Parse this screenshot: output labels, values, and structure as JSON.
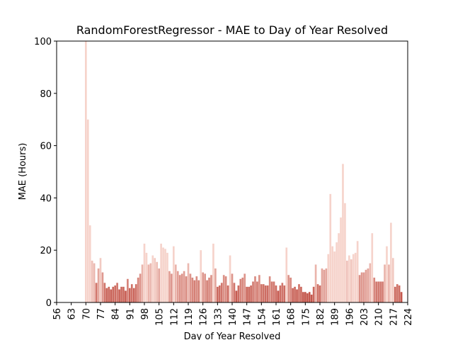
{
  "chart_data": {
    "type": "bar",
    "title": "RandomForestRegressor - MAE to Day of Year Resolved",
    "xlabel": "Day of Year Resolved",
    "ylabel": "MAE (Hours)",
    "x": [
      70,
      71,
      72,
      73,
      74,
      75,
      76,
      77,
      78,
      79,
      80,
      81,
      82,
      83,
      84,
      85,
      86,
      87,
      88,
      89,
      90,
      91,
      92,
      93,
      94,
      95,
      96,
      97,
      98,
      99,
      100,
      101,
      102,
      103,
      104,
      105,
      106,
      107,
      108,
      109,
      110,
      111,
      112,
      113,
      114,
      115,
      116,
      117,
      118,
      119,
      120,
      121,
      122,
      123,
      124,
      125,
      126,
      127,
      128,
      129,
      130,
      131,
      132,
      133,
      134,
      135,
      136,
      137,
      138,
      139,
      140,
      141,
      142,
      143,
      144,
      145,
      146,
      147,
      148,
      149,
      150,
      151,
      152,
      153,
      154,
      155,
      156,
      157,
      158,
      159,
      160,
      161,
      162,
      163,
      164,
      165,
      166,
      167,
      168,
      169,
      170,
      171,
      172,
      173,
      174,
      175,
      176,
      177,
      178,
      179,
      180,
      181,
      182,
      183,
      184,
      185,
      186,
      187,
      188,
      189,
      190,
      191,
      192,
      193,
      194,
      195,
      196,
      197,
      198,
      199,
      200,
      201,
      202,
      203,
      204,
      205,
      206,
      207,
      208,
      209,
      210,
      211,
      212,
      213,
      214,
      215,
      216,
      217,
      218,
      219,
      220,
      221
    ],
    "values": [
      100,
      70,
      29.5,
      16,
      15,
      7.5,
      13,
      17,
      11.5,
      7.5,
      5.5,
      6,
      5,
      6,
      6.5,
      7.5,
      5,
      6,
      6,
      4.5,
      9,
      5.5,
      7,
      5.5,
      7,
      9.5,
      11,
      14.5,
      22.5,
      19,
      14.5,
      15,
      18,
      17,
      15.5,
      13,
      22.5,
      21,
      20.5,
      19,
      12,
      11,
      21.5,
      14.5,
      12,
      10.5,
      11,
      12,
      10,
      15,
      11,
      9.5,
      8.5,
      10,
      8.5,
      20,
      11.5,
      11,
      8.5,
      9.5,
      10.5,
      22.5,
      13,
      6,
      6.5,
      7.5,
      10.5,
      10,
      6.5,
      18,
      11,
      7.5,
      4.5,
      6.5,
      9,
      9.5,
      11,
      6,
      6,
      6.5,
      8,
      10,
      8,
      10.5,
      7,
      7,
      6.5,
      6.5,
      10,
      8,
      8,
      6.5,
      4.5,
      6.5,
      7.5,
      6.5,
      21,
      10.5,
      9.5,
      5.5,
      6,
      5,
      7,
      6,
      4,
      4,
      3.5,
      4,
      3,
      6,
      14.5,
      7,
      6.5,
      13,
      12.5,
      13,
      18.5,
      41.5,
      21.5,
      19.5,
      23,
      26.5,
      32.5,
      53,
      38,
      16,
      18,
      16.5,
      18.5,
      19,
      23.5,
      10.5,
      11.5,
      11.5,
      12.5,
      13,
      15,
      26.5,
      9.5,
      8,
      8,
      8,
      8,
      14.5,
      21.5,
      14.5,
      30.5,
      17,
      6,
      7,
      6.5,
      4
    ],
    "color_low": "#c4574c",
    "color_high": "#f6d3cb",
    "xlim": [
      56,
      224
    ],
    "xticks": [
      56,
      63,
      70,
      77,
      84,
      91,
      98,
      105,
      112,
      119,
      126,
      133,
      140,
      147,
      154,
      161,
      168,
      175,
      182,
      189,
      196,
      203,
      210,
      217,
      224
    ],
    "ylim": [
      0,
      100
    ],
    "yticks": [
      0,
      20,
      40,
      60,
      80,
      100
    ]
  }
}
